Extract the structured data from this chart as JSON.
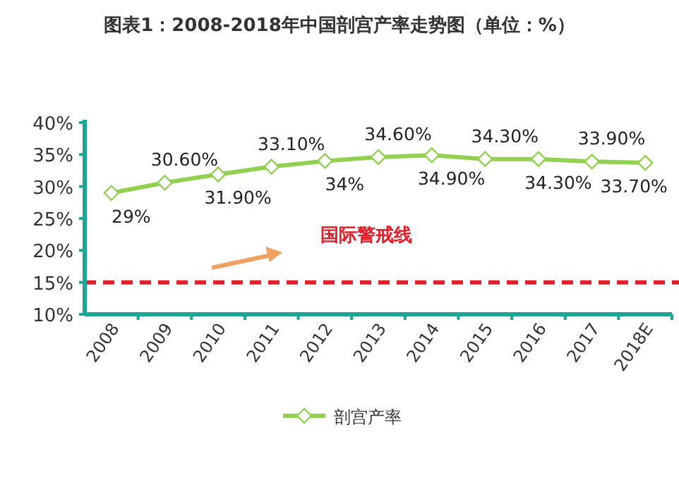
{
  "chart_data": {
    "type": "line",
    "title": "图表1：2008-2018年中国剖宫产率走势图（单位：%）",
    "categories": [
      "2008",
      "2009",
      "2010",
      "2011",
      "2012",
      "2013",
      "2014",
      "2015",
      "2016",
      "2017",
      "2018E"
    ],
    "series": [
      {
        "name": "剖宫产率",
        "color": "#92d050",
        "values": [
          29,
          30.6,
          31.9,
          33.1,
          34,
          34.6,
          34.9,
          34.3,
          34.3,
          33.9,
          33.7
        ],
        "value_labels": [
          "29%",
          "30.60%",
          "31.90%",
          "33.10%",
          "34%",
          "34.60%",
          "34.90%",
          "34.30%",
          "34.30%",
          "33.90%",
          "33.70%"
        ]
      }
    ],
    "ylim": [
      10,
      40
    ],
    "yticks": [
      {
        "value": 10,
        "label": "10%"
      },
      {
        "value": 15,
        "label": "15%"
      },
      {
        "value": 20,
        "label": "20%"
      },
      {
        "value": 25,
        "label": "25%"
      },
      {
        "value": 30,
        "label": "30%"
      },
      {
        "value": 35,
        "label": "35%"
      },
      {
        "value": 40,
        "label": "40%"
      }
    ],
    "ref_lines": [
      {
        "axis": "y",
        "value": 15,
        "label": "国际警戒线",
        "color": "#e0202a",
        "line_style": "dashed"
      }
    ],
    "marker": "diamond",
    "legend": "bottom",
    "grid": false
  }
}
